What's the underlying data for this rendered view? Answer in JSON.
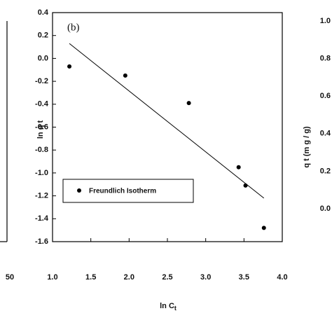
{
  "chart_data": [
    {
      "type": "fragment",
      "xlim": [
        0,
        50
      ],
      "xticks": [
        50
      ]
    },
    {
      "type": "scatter",
      "annotation": "(b)",
      "xlabel": "ln C",
      "xlabel_sub": "t",
      "ylabel": "ln q t",
      "xlim": [
        1.0,
        4.0
      ],
      "xticks": [
        {
          "value": 1.0,
          "label": "1.0"
        },
        1.5,
        {
          "value": 2.0,
          "label": "2.0"
        },
        2.5,
        {
          "value": 3.0,
          "label": "3.0"
        },
        3.5,
        {
          "value": 4.0,
          "label": "4.0"
        }
      ],
      "ylim": [
        -1.6,
        0.4
      ],
      "yticks": [
        0.4,
        0.2,
        {
          "value": 0.0,
          "label": "0.0"
        },
        -0.2,
        -0.4,
        -0.6,
        -0.8,
        {
          "value": -1.0,
          "label": "-1.0"
        },
        -1.2,
        -1.4,
        -1.6
      ],
      "series": [
        {
          "name": "Freundlich Isotherm",
          "color": "#000000",
          "x": [
            1.22,
            1.95,
            2.78,
            3.43,
            3.52,
            3.76
          ],
          "values": [
            -0.07,
            -0.15,
            -0.39,
            -0.95,
            -1.11,
            -1.48
          ]
        }
      ],
      "fit_line": {
        "color": "#000000",
        "x": [
          1.22,
          3.76
        ],
        "values": [
          0.13,
          -1.22
        ]
      }
    },
    {
      "type": "fragment",
      "ylabel": "q t (m g / g)",
      "ylim": [
        0.0,
        1.0
      ],
      "yticks": [
        {
          "value": 1.0,
          "label": "1.0"
        },
        0.8,
        0.6,
        0.4,
        0.2,
        {
          "value": 0.0,
          "label": "0.0"
        }
      ]
    }
  ]
}
